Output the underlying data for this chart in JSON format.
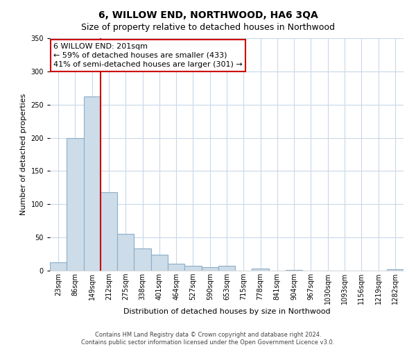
{
  "title": "6, WILLOW END, NORTHWOOD, HA6 3QA",
  "subtitle": "Size of property relative to detached houses in Northwood",
  "xlabel": "Distribution of detached houses by size in Northwood",
  "ylabel": "Number of detached properties",
  "bar_labels": [
    "23sqm",
    "86sqm",
    "149sqm",
    "212sqm",
    "275sqm",
    "338sqm",
    "401sqm",
    "464sqm",
    "527sqm",
    "590sqm",
    "653sqm",
    "715sqm",
    "778sqm",
    "841sqm",
    "904sqm",
    "967sqm",
    "1030sqm",
    "1093sqm",
    "1156sqm",
    "1219sqm",
    "1282sqm"
  ],
  "bar_values": [
    13,
    200,
    262,
    118,
    55,
    33,
    24,
    10,
    7,
    5,
    7,
    0,
    3,
    0,
    1,
    0,
    0,
    0,
    0,
    0,
    2
  ],
  "bar_color": "#ccdce8",
  "bar_edge_color": "#8aaec8",
  "vline_color": "#cc0000",
  "vline_bar_index": 3,
  "ylim": [
    0,
    350
  ],
  "yticks": [
    0,
    50,
    100,
    150,
    200,
    250,
    300,
    350
  ],
  "annotation_lines": [
    "6 WILLOW END: 201sqm",
    "← 59% of detached houses are smaller (433)",
    "41% of semi-detached houses are larger (301) →"
  ],
  "annotation_box_color": "#ffffff",
  "annotation_box_edge_color": "#cc0000",
  "footer_line1": "Contains HM Land Registry data © Crown copyright and database right 2024.",
  "footer_line2": "Contains public sector information licensed under the Open Government Licence v3.0.",
  "title_fontsize": 10,
  "subtitle_fontsize": 9,
  "xlabel_fontsize": 8,
  "ylabel_fontsize": 8,
  "tick_fontsize": 7,
  "annotation_fontsize": 8,
  "footer_fontsize": 6
}
